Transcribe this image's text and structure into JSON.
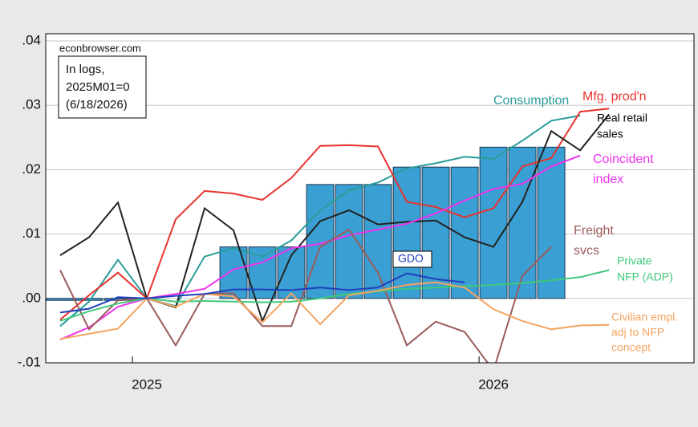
{
  "chart_data": {
    "type": "line",
    "note_source": "econbrowser.com",
    "note_box": [
      "In logs,",
      "2025M01=0",
      "(6/18/2026)"
    ],
    "x": [
      -3,
      -2,
      -1,
      0,
      1,
      2,
      3,
      4,
      5,
      6,
      7,
      8,
      9,
      10,
      11,
      12,
      13,
      14,
      15,
      16
    ],
    "xlim": [
      -3.5,
      18.94
    ],
    "xticks": [
      {
        "value": 0,
        "label": "2025"
      },
      {
        "value": 12,
        "label": "2026"
      }
    ],
    "ylim": [
      -0.01,
      0.04
    ],
    "yticks": [
      {
        "value": -0.01,
        "label": "-.01"
      },
      {
        "value": 0,
        "label": ".00"
      },
      {
        "value": 0.01,
        "label": ".01"
      },
      {
        "value": 0.02,
        "label": ".02"
      },
      {
        "value": 0.03,
        "label": ".03"
      },
      {
        "value": 0.04,
        "label": ".04"
      }
    ],
    "grid": true,
    "bars": {
      "color": "#3a9fd2",
      "values": [
        -0.0003,
        -0.0003,
        -0.0003,
        null,
        null,
        null,
        0.008,
        0.008,
        0.008,
        0.0177,
        0.0177,
        0.0177,
        0.0204,
        0.0204,
        0.0204,
        0.0235,
        0.0235,
        0.0235,
        null,
        null
      ]
    },
    "series": [
      {
        "label": [
          "Consumption"
        ],
        "color": "#2a9d9a",
        "values": [
          -0.0043,
          -0.0005,
          0.006,
          0,
          -0.0012,
          0.0065,
          0.0078,
          0.0065,
          0.009,
          0.0137,
          0.0168,
          0.018,
          0.0202,
          0.021,
          0.022,
          0.0217,
          0.0245,
          0.0276,
          0.0284,
          null
        ]
      },
      {
        "label": [
          "Mfg. prod'n"
        ],
        "color": "#e8332f",
        "values": [
          -0.0033,
          0.0005,
          0.004,
          0,
          0.0123,
          0.0167,
          0.0163,
          0.0153,
          0.0187,
          0.0237,
          0.0238,
          0.0236,
          0.015,
          0.0142,
          0.0126,
          0.014,
          0.0205,
          0.0218,
          0.029,
          0.0295
        ]
      },
      {
        "label": [
          "Real retail",
          "sales"
        ],
        "color": "#222222",
        "values": [
          0.0067,
          0.0095,
          0.0149,
          0,
          -0.0014,
          0.014,
          0.0106,
          -0.0035,
          0.0067,
          0.012,
          0.0137,
          0.0115,
          0.0119,
          0.0121,
          0.0095,
          0.008,
          0.015,
          0.026,
          0.023,
          0.0286
        ]
      },
      {
        "label": [
          "Coincident",
          "index"
        ],
        "color": "#ee33ee",
        "values": [
          -0.0064,
          -0.0045,
          -0.0013,
          0,
          0.0007,
          0.0015,
          0.0045,
          0.0056,
          0.0078,
          0.0085,
          0.0098,
          0.0107,
          0.0116,
          0.0132,
          0.0152,
          0.017,
          0.0178,
          0.0205,
          0.0222,
          null
        ]
      },
      {
        "label": [
          "Freight",
          "svcs"
        ],
        "color": "#9c5b5b",
        "values": [
          0.0044,
          -0.0048,
          -0.0003,
          0,
          -0.0073,
          0.0007,
          0.0008,
          -0.0043,
          -0.0043,
          0.008,
          0.0107,
          0.004,
          -0.0073,
          -0.0036,
          -0.0052,
          -0.0112,
          0.0035,
          0.008,
          null,
          null
        ]
      },
      {
        "label": [
          "Private",
          "NFP (ADP)"
        ],
        "color": "#3ec97a",
        "values": [
          -0.0035,
          -0.002,
          -0.0008,
          0,
          -0.0005,
          -0.0004,
          -0.0005,
          -0.0006,
          -0.0005,
          0,
          0.0007,
          0.0011,
          0.0015,
          0.0017,
          0.0019,
          0.0021,
          0.0024,
          0.0028,
          0.0033,
          0.0044
        ]
      },
      {
        "label": [
          "Civilian empl.",
          "adj to NFP",
          "concept"
        ],
        "color": "#f4a460",
        "values": [
          -0.0063,
          -0.0055,
          -0.0047,
          0,
          -0.0013,
          0.0007,
          0.0003,
          -0.0037,
          0.0008,
          -0.004,
          0.0005,
          0.0012,
          0.0021,
          0.0025,
          0.0017,
          -0.0017,
          -0.0035,
          -0.0048,
          -0.0042,
          -0.0041
        ]
      },
      {
        "label": [
          "GDO"
        ],
        "color": "#1f3fbf",
        "values": [
          -0.0022,
          -0.0016,
          0.0002,
          0,
          0.0004,
          0.0007,
          0.0014,
          0.0014,
          0.0013,
          0.0017,
          0.0013,
          0.0017,
          0.0039,
          0.003,
          0.0025,
          null,
          null,
          null,
          null,
          null
        ]
      }
    ]
  }
}
